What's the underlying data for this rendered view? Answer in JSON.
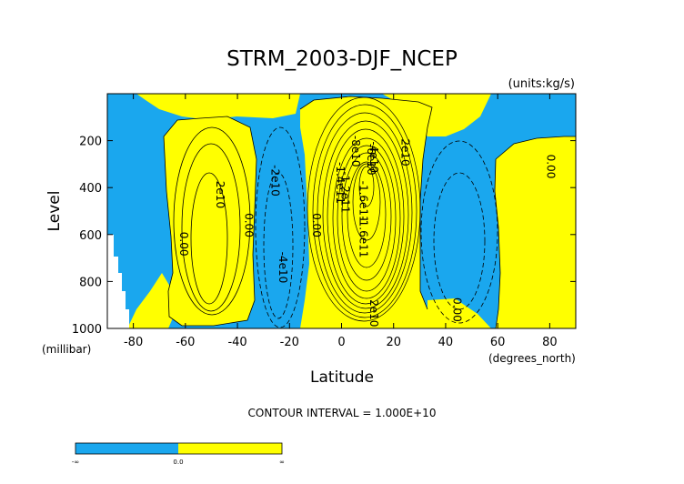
{
  "chart_data": {
    "type": "contour",
    "title": "STRM_2003-DJF_NCEP",
    "units": "(units:kg/s)",
    "xlabel": "Latitude",
    "ylabel": "Level",
    "x_unit": "(degrees_north)",
    "y_unit": "(millibar)",
    "xlim": [
      -90,
      90
    ],
    "ylim": [
      1000,
      0
    ],
    "x_ticks": [
      -80,
      -60,
      -40,
      -20,
      0,
      20,
      40,
      60,
      80
    ],
    "y_ticks": [
      200,
      400,
      600,
      800,
      1000
    ],
    "contour_interval_text": "CONTOUR INTERVAL = 1.000E+10",
    "fill_colors": {
      "negative": "#1aa7ee",
      "positive": "#ffff00"
    },
    "contour_labels": [
      {
        "text": "2e10",
        "x": -48,
        "y": 430
      },
      {
        "text": "0.00",
        "x": -62,
        "y": 640
      },
      {
        "text": "0.00",
        "x": -37,
        "y": 560
      },
      {
        "text": "-2e10",
        "x": -27,
        "y": 370
      },
      {
        "text": "-4e10",
        "x": -24,
        "y": 740
      },
      {
        "text": "0.00",
        "x": -11,
        "y": 560
      },
      {
        "text": "-8e10",
        "x": 4,
        "y": 245
      },
      {
        "text": "-4e10",
        "x": 11,
        "y": 270
      },
      {
        "text": "-6e10",
        "x": 10,
        "y": 280
      },
      {
        "text": "2e10",
        "x": 23,
        "y": 250
      },
      {
        "text": "-1.4e11",
        "x": -2,
        "y": 380
      },
      {
        "text": "-1.2e11",
        "x": 0,
        "y": 420
      },
      {
        "text": "-1.6e11",
        "x": 7,
        "y": 460
      },
      {
        "text": "-1.6e11",
        "x": 7,
        "y": 610
      },
      {
        "text": "2e10",
        "x": 11,
        "y": 935
      },
      {
        "text": "0.00",
        "x": 43,
        "y": 920
      },
      {
        "text": "0.00",
        "x": 79,
        "y": 310
      }
    ],
    "colorbar": {
      "labels": [
        "-∞",
        "0.0",
        "∞"
      ]
    }
  }
}
